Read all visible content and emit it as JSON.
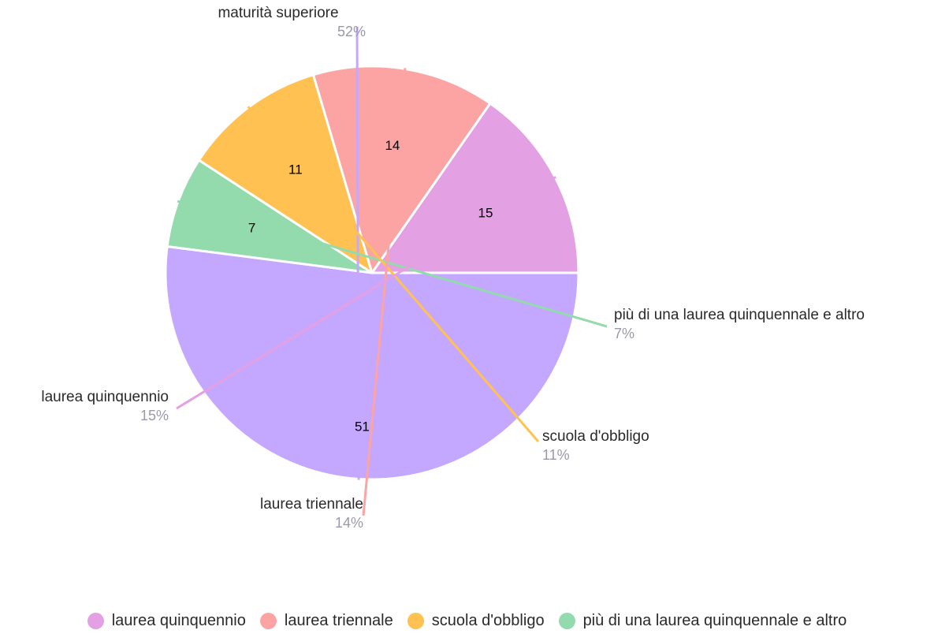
{
  "chart_data": {
    "type": "pie",
    "slices": [
      {
        "category": "maturità superiore",
        "value": 51,
        "value_label": "51",
        "percent_label": "52%",
        "color": "#c4a7ff"
      },
      {
        "category": "più di una laurea quinquennale e altro",
        "value": 7,
        "value_label": "7",
        "percent_label": "7%",
        "color": "#93dbad"
      },
      {
        "category": "scuola d'obbligo",
        "value": 11,
        "value_label": "11",
        "percent_label": "11%",
        "color": "#ffc152"
      },
      {
        "category": "laurea triennale",
        "value": 14,
        "value_label": "14",
        "percent_label": "14%",
        "color": "#fca3a3"
      },
      {
        "category": "laurea quinquennio",
        "value": 15,
        "value_label": "15",
        "percent_label": "15%",
        "color": "#e3a0e3"
      }
    ],
    "legend": {
      "placement": "bottom",
      "items": [
        {
          "label": "laurea quinquennio",
          "color": "#e3a0e3"
        },
        {
          "label": "laurea triennale",
          "color": "#fca3a3"
        },
        {
          "label": "scuola d'obbligo",
          "color": "#ffc152"
        },
        {
          "label": "più di una laurea quinquennale e altro",
          "color": "#93dbad"
        }
      ]
    }
  }
}
